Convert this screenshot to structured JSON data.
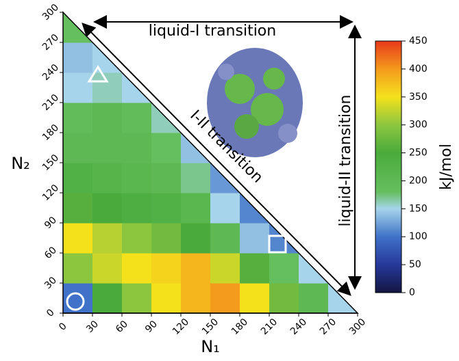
{
  "chart_data": {
    "type": "heatmap",
    "xlabel": "N₁",
    "ylabel": "N₂",
    "x_edges": [
      0,
      30,
      60,
      90,
      120,
      150,
      180,
      210,
      240,
      270,
      300
    ],
    "y_edges": [
      0,
      30,
      60,
      90,
      120,
      150,
      180,
      210,
      240,
      270,
      300
    ],
    "z": [
      [
        100,
        250,
        300,
        350,
        380,
        400,
        350,
        280,
        200,
        150
      ],
      [
        300,
        330,
        350,
        360,
        380,
        330,
        260,
        180,
        150,
        null
      ],
      [
        350,
        320,
        300,
        280,
        250,
        200,
        140,
        110,
        null,
        null
      ],
      [
        260,
        250,
        240,
        230,
        210,
        150,
        110,
        null,
        null,
        null
      ],
      [
        230,
        220,
        210,
        200,
        170,
        120,
        null,
        null,
        null,
        null
      ],
      [
        200,
        200,
        200,
        180,
        140,
        null,
        null,
        null,
        null,
        null
      ],
      [
        190,
        200,
        190,
        160,
        null,
        null,
        null,
        null,
        null,
        null
      ],
      [
        150,
        160,
        150,
        null,
        null,
        null,
        null,
        null,
        null,
        null
      ],
      [
        140,
        150,
        null,
        null,
        null,
        null,
        null,
        null,
        null,
        null
      ],
      [
        180,
        null,
        null,
        null,
        null,
        null,
        null,
        null,
        null,
        null
      ]
    ],
    "xlim": [
      0,
      300
    ],
    "ylim": [
      0,
      300
    ],
    "xticks": [
      0,
      30,
      60,
      90,
      120,
      150,
      180,
      210,
      240,
      270,
      300
    ],
    "yticks": [
      0,
      30,
      60,
      90,
      120,
      150,
      180,
      210,
      240,
      270,
      300
    ],
    "colorbar": {
      "label": "kJ/mol",
      "clim": [
        0,
        450
      ],
      "ticks": [
        0,
        50,
        100,
        150,
        200,
        250,
        300,
        350,
        400,
        450
      ],
      "colorscale": [
        {
          "value": 0,
          "color": "#141642"
        },
        {
          "value": 50,
          "color": "#26389a"
        },
        {
          "value": 100,
          "color": "#3f72c8"
        },
        {
          "value": 150,
          "color": "#a6d4ea"
        },
        {
          "value": 180,
          "color": "#66bf5e"
        },
        {
          "value": 250,
          "color": "#4aab3c"
        },
        {
          "value": 300,
          "color": "#8cc63f"
        },
        {
          "value": 350,
          "color": "#f4e11c"
        },
        {
          "value": 400,
          "color": "#f49a1c"
        },
        {
          "value": 450,
          "color": "#e8391a"
        }
      ]
    },
    "annotations": [
      "liquid-I transition",
      "I-II transition",
      "liquid-II transition"
    ]
  }
}
